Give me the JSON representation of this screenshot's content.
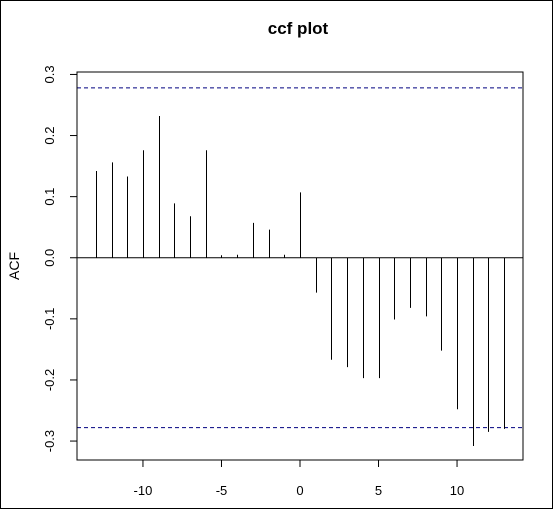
{
  "chart_data": {
    "type": "bar",
    "title": "ccf plot",
    "xlabel": "",
    "ylabel": "ACF",
    "x": [
      -13,
      -12,
      -11,
      -10,
      -9,
      -8,
      -7,
      -6,
      -5,
      -4,
      -3,
      -2,
      -1,
      0,
      1,
      2,
      3,
      4,
      5,
      6,
      7,
      8,
      9,
      10,
      11,
      12,
      13
    ],
    "values": [
      0.142,
      0.156,
      0.133,
      0.176,
      0.232,
      0.089,
      0.068,
      0.176,
      0.004,
      0.005,
      0.057,
      0.046,
      0.005,
      0.107,
      -0.057,
      -0.167,
      -0.179,
      -0.197,
      -0.197,
      -0.101,
      -0.082,
      -0.096,
      -0.152,
      -0.248,
      -0.308,
      -0.285,
      -0.28
    ],
    "confidence_bounds": [
      0.278,
      -0.278
    ],
    "xlim": [
      -14.2,
      14.2
    ],
    "ylim": [
      -0.331,
      0.304
    ],
    "x_ticks": [
      "-10",
      "-5",
      "0",
      "5",
      "10"
    ],
    "y_ticks": [
      "-0.3",
      "-0.2",
      "-0.1",
      "0.0",
      "0.1",
      "0.2",
      "0.3"
    ],
    "grid": false,
    "legend": "none",
    "colors": {
      "bars": "#000000",
      "bounds": "#000080",
      "zero_line": "#000000"
    }
  }
}
